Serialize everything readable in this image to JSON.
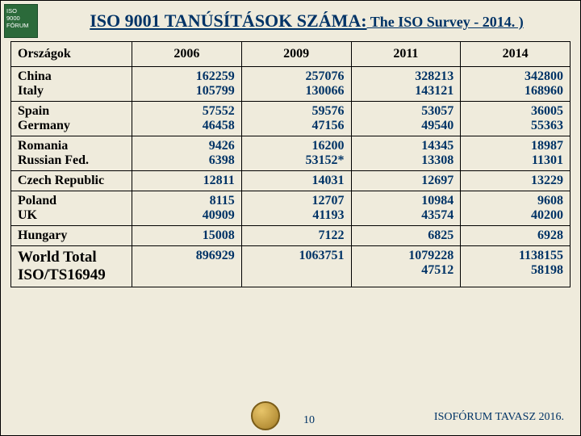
{
  "logo": {
    "line1": "ISO",
    "line2": "9000",
    "line3": "FÓRUM"
  },
  "title": {
    "main": "ISO 9001 TANÚSÍTÁSOK SZÁMA:",
    "sub": " The ISO Survey - 2014. )"
  },
  "table": {
    "headers": [
      "Országok",
      "2006",
      "2009",
      "2011",
      "2014"
    ],
    "rows": [
      {
        "labels": [
          "China",
          "Italy"
        ],
        "cols": [
          [
            "162259",
            "105799"
          ],
          [
            "257076",
            "130066"
          ],
          [
            "328213",
            "143121"
          ],
          [
            "342800",
            "168960"
          ]
        ]
      },
      {
        "labels": [
          "Spain",
          "Germany"
        ],
        "cols": [
          [
            "57552",
            "46458"
          ],
          [
            "59576",
            "47156"
          ],
          [
            "53057",
            "49540"
          ],
          [
            "36005",
            "55363"
          ]
        ]
      },
      {
        "labels": [
          "Romania",
          "Russian Fed."
        ],
        "cols": [
          [
            "9426",
            "6398"
          ],
          [
            "16200",
            "53152*"
          ],
          [
            "14345",
            "13308"
          ],
          [
            "18987",
            "11301"
          ]
        ]
      },
      {
        "labels": [
          "Czech Republic"
        ],
        "cols": [
          [
            "12811"
          ],
          [
            "14031"
          ],
          [
            "12697"
          ],
          [
            "13229"
          ]
        ]
      },
      {
        "labels": [
          "Poland",
          "UK"
        ],
        "cols": [
          [
            "8115",
            "40909"
          ],
          [
            "12707",
            "41193"
          ],
          [
            "10984",
            "43574"
          ],
          [
            "9608",
            "40200"
          ]
        ]
      },
      {
        "labels": [
          "Hungary"
        ],
        "cols": [
          [
            "15008"
          ],
          [
            "7122"
          ],
          [
            "6825"
          ],
          [
            "6928"
          ]
        ]
      },
      {
        "labels": [
          "World Total",
          "ISO/TS16949"
        ],
        "world": true,
        "cols": [
          [
            "896929"
          ],
          [
            "1063751"
          ],
          [
            "1079228",
            "47512"
          ],
          [
            "1138155",
            "58198"
          ]
        ]
      }
    ]
  },
  "footer": {
    "page": "10",
    "text": "ISOFÓRUM TAVASZ 2016."
  },
  "colors": {
    "bg": "#efebdc",
    "heading": "#003366"
  }
}
